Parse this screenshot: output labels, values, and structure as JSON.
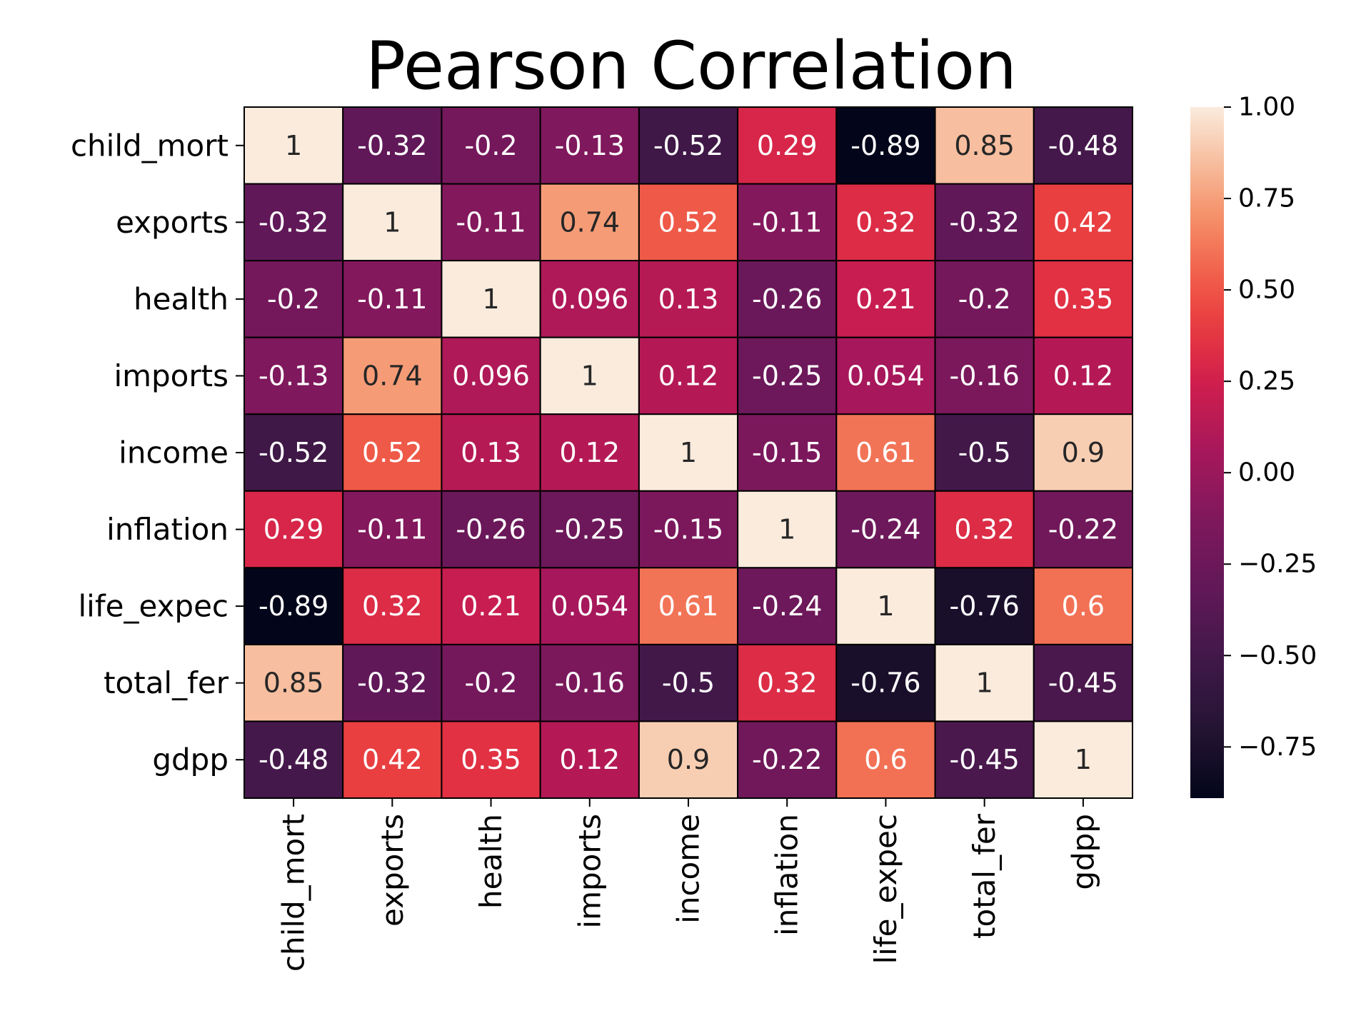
{
  "chart_data": {
    "type": "heatmap",
    "title": "Pearson Correlation",
    "colormap": "rocket",
    "cell_border_color": "#000000",
    "variables": [
      "child_mort",
      "exports",
      "health",
      "imports",
      "income",
      "inflation",
      "life_expec",
      "total_fer",
      "gdpp"
    ],
    "matrix": [
      [
        1,
        -0.32,
        -0.2,
        -0.13,
        -0.52,
        0.29,
        -0.89,
        0.85,
        -0.48
      ],
      [
        -0.32,
        1,
        -0.11,
        0.74,
        0.52,
        -0.11,
        0.32,
        -0.32,
        0.42
      ],
      [
        -0.2,
        -0.11,
        1,
        0.096,
        0.13,
        -0.26,
        0.21,
        -0.2,
        0.35
      ],
      [
        -0.13,
        0.74,
        0.096,
        1,
        0.12,
        -0.25,
        0.054,
        -0.16,
        0.12
      ],
      [
        -0.52,
        0.52,
        0.13,
        0.12,
        1,
        -0.15,
        0.61,
        -0.5,
        0.9
      ],
      [
        0.29,
        -0.11,
        -0.26,
        -0.25,
        -0.15,
        1,
        -0.24,
        0.32,
        -0.22
      ],
      [
        -0.89,
        0.32,
        0.21,
        0.054,
        0.61,
        -0.24,
        1,
        -0.76,
        0.6
      ],
      [
        0.85,
        -0.32,
        -0.2,
        -0.16,
        -0.5,
        0.32,
        -0.76,
        1,
        -0.45
      ],
      [
        -0.48,
        0.42,
        0.35,
        0.12,
        0.9,
        -0.22,
        0.6,
        -0.45,
        1
      ]
    ],
    "colorbar": {
      "vmin": -0.89,
      "vmax": 1.0,
      "ticks": [
        1.0,
        0.75,
        0.5,
        0.25,
        0.0,
        -0.25,
        -0.5,
        -0.75
      ],
      "tick_labels": [
        "1.00",
        "0.75",
        "0.50",
        "0.25",
        "0.00",
        "−0.25",
        "−0.50",
        "−0.75"
      ]
    }
  }
}
